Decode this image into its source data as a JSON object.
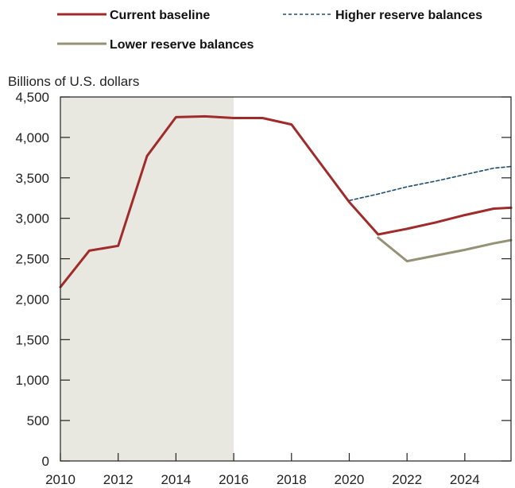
{
  "chart_data": {
    "type": "line",
    "ylabel": "Billions of U.S. dollars",
    "ylim": [
      0,
      4500
    ],
    "xlim": [
      2010,
      2025.6
    ],
    "y_ticks": [
      0,
      500,
      1000,
      1500,
      2000,
      2500,
      3000,
      3500,
      4000,
      4500
    ],
    "y_tick_labels": [
      "0",
      "500",
      "1,000",
      "1,500",
      "2,000",
      "2,500",
      "3,000",
      "3,500",
      "4,000",
      "4,500"
    ],
    "x_ticks": [
      2010,
      2012,
      2014,
      2016,
      2018,
      2020,
      2022,
      2024
    ],
    "x_tick_labels": [
      "2010",
      "2012",
      "2014",
      "2016",
      "2018",
      "2020",
      "2022",
      "2024"
    ],
    "shaded_region": {
      "x_start": 2010,
      "x_end": 2016,
      "color": "#e8e8e1"
    },
    "legend_position": "top",
    "grid": false,
    "series": [
      {
        "name": "Current baseline",
        "style": "solid",
        "color": "#a02b2b",
        "x": [
          2010,
          2011,
          2012,
          2013,
          2014,
          2015,
          2016,
          2017,
          2018,
          2019,
          2020,
          2021,
          2022,
          2023,
          2024,
          2025,
          2025.6
        ],
        "y": [
          2150,
          2600,
          2660,
          3770,
          4250,
          4260,
          4240,
          4240,
          4160,
          3680,
          3200,
          2800,
          2870,
          2950,
          3040,
          3120,
          3130
        ]
      },
      {
        "name": "Higher reserve balances",
        "style": "dashed",
        "color": "#1f4e6e",
        "x": [
          2020,
          2021,
          2022,
          2023,
          2024,
          2025,
          2025.6
        ],
        "y": [
          3220,
          3300,
          3390,
          3460,
          3540,
          3620,
          3640
        ]
      },
      {
        "name": "Lower reserve balances",
        "style": "solid",
        "color": "#959277",
        "x": [
          2021,
          2022,
          2023,
          2024,
          2025,
          2025.6
        ],
        "y": [
          2760,
          2470,
          2540,
          2610,
          2690,
          2730
        ]
      }
    ]
  }
}
